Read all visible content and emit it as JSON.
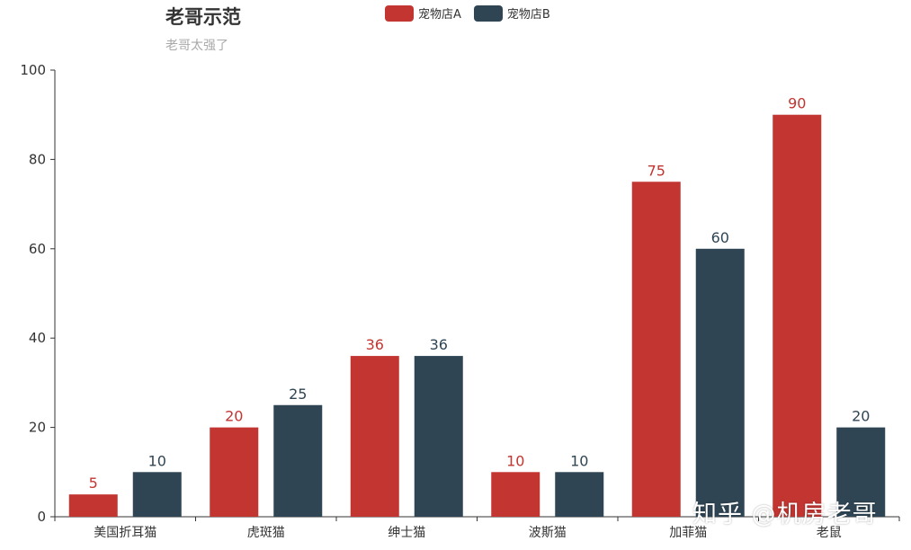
{
  "colors": {
    "series_a": "#c23531",
    "series_b": "#2f4554",
    "axis": "#333333"
  },
  "chart_data": {
    "type": "bar",
    "title": "老哥示范",
    "subtitle": "老哥太强了",
    "categories": [
      "美国折耳猫",
      "虎斑猫",
      "绅士猫",
      "波斯猫",
      "加菲猫",
      "老鼠"
    ],
    "series": [
      {
        "name": "宠物店A",
        "values": [
          5,
          20,
          36,
          10,
          75,
          90
        ]
      },
      {
        "name": "宠物店B",
        "values": [
          10,
          25,
          36,
          10,
          60,
          20
        ]
      }
    ],
    "ylim": [
      0,
      100
    ],
    "yticks": [
      0,
      20,
      40,
      60,
      80,
      100
    ],
    "grid": false,
    "legend_position": "top-center"
  },
  "watermark": "知乎 @机房老哥"
}
